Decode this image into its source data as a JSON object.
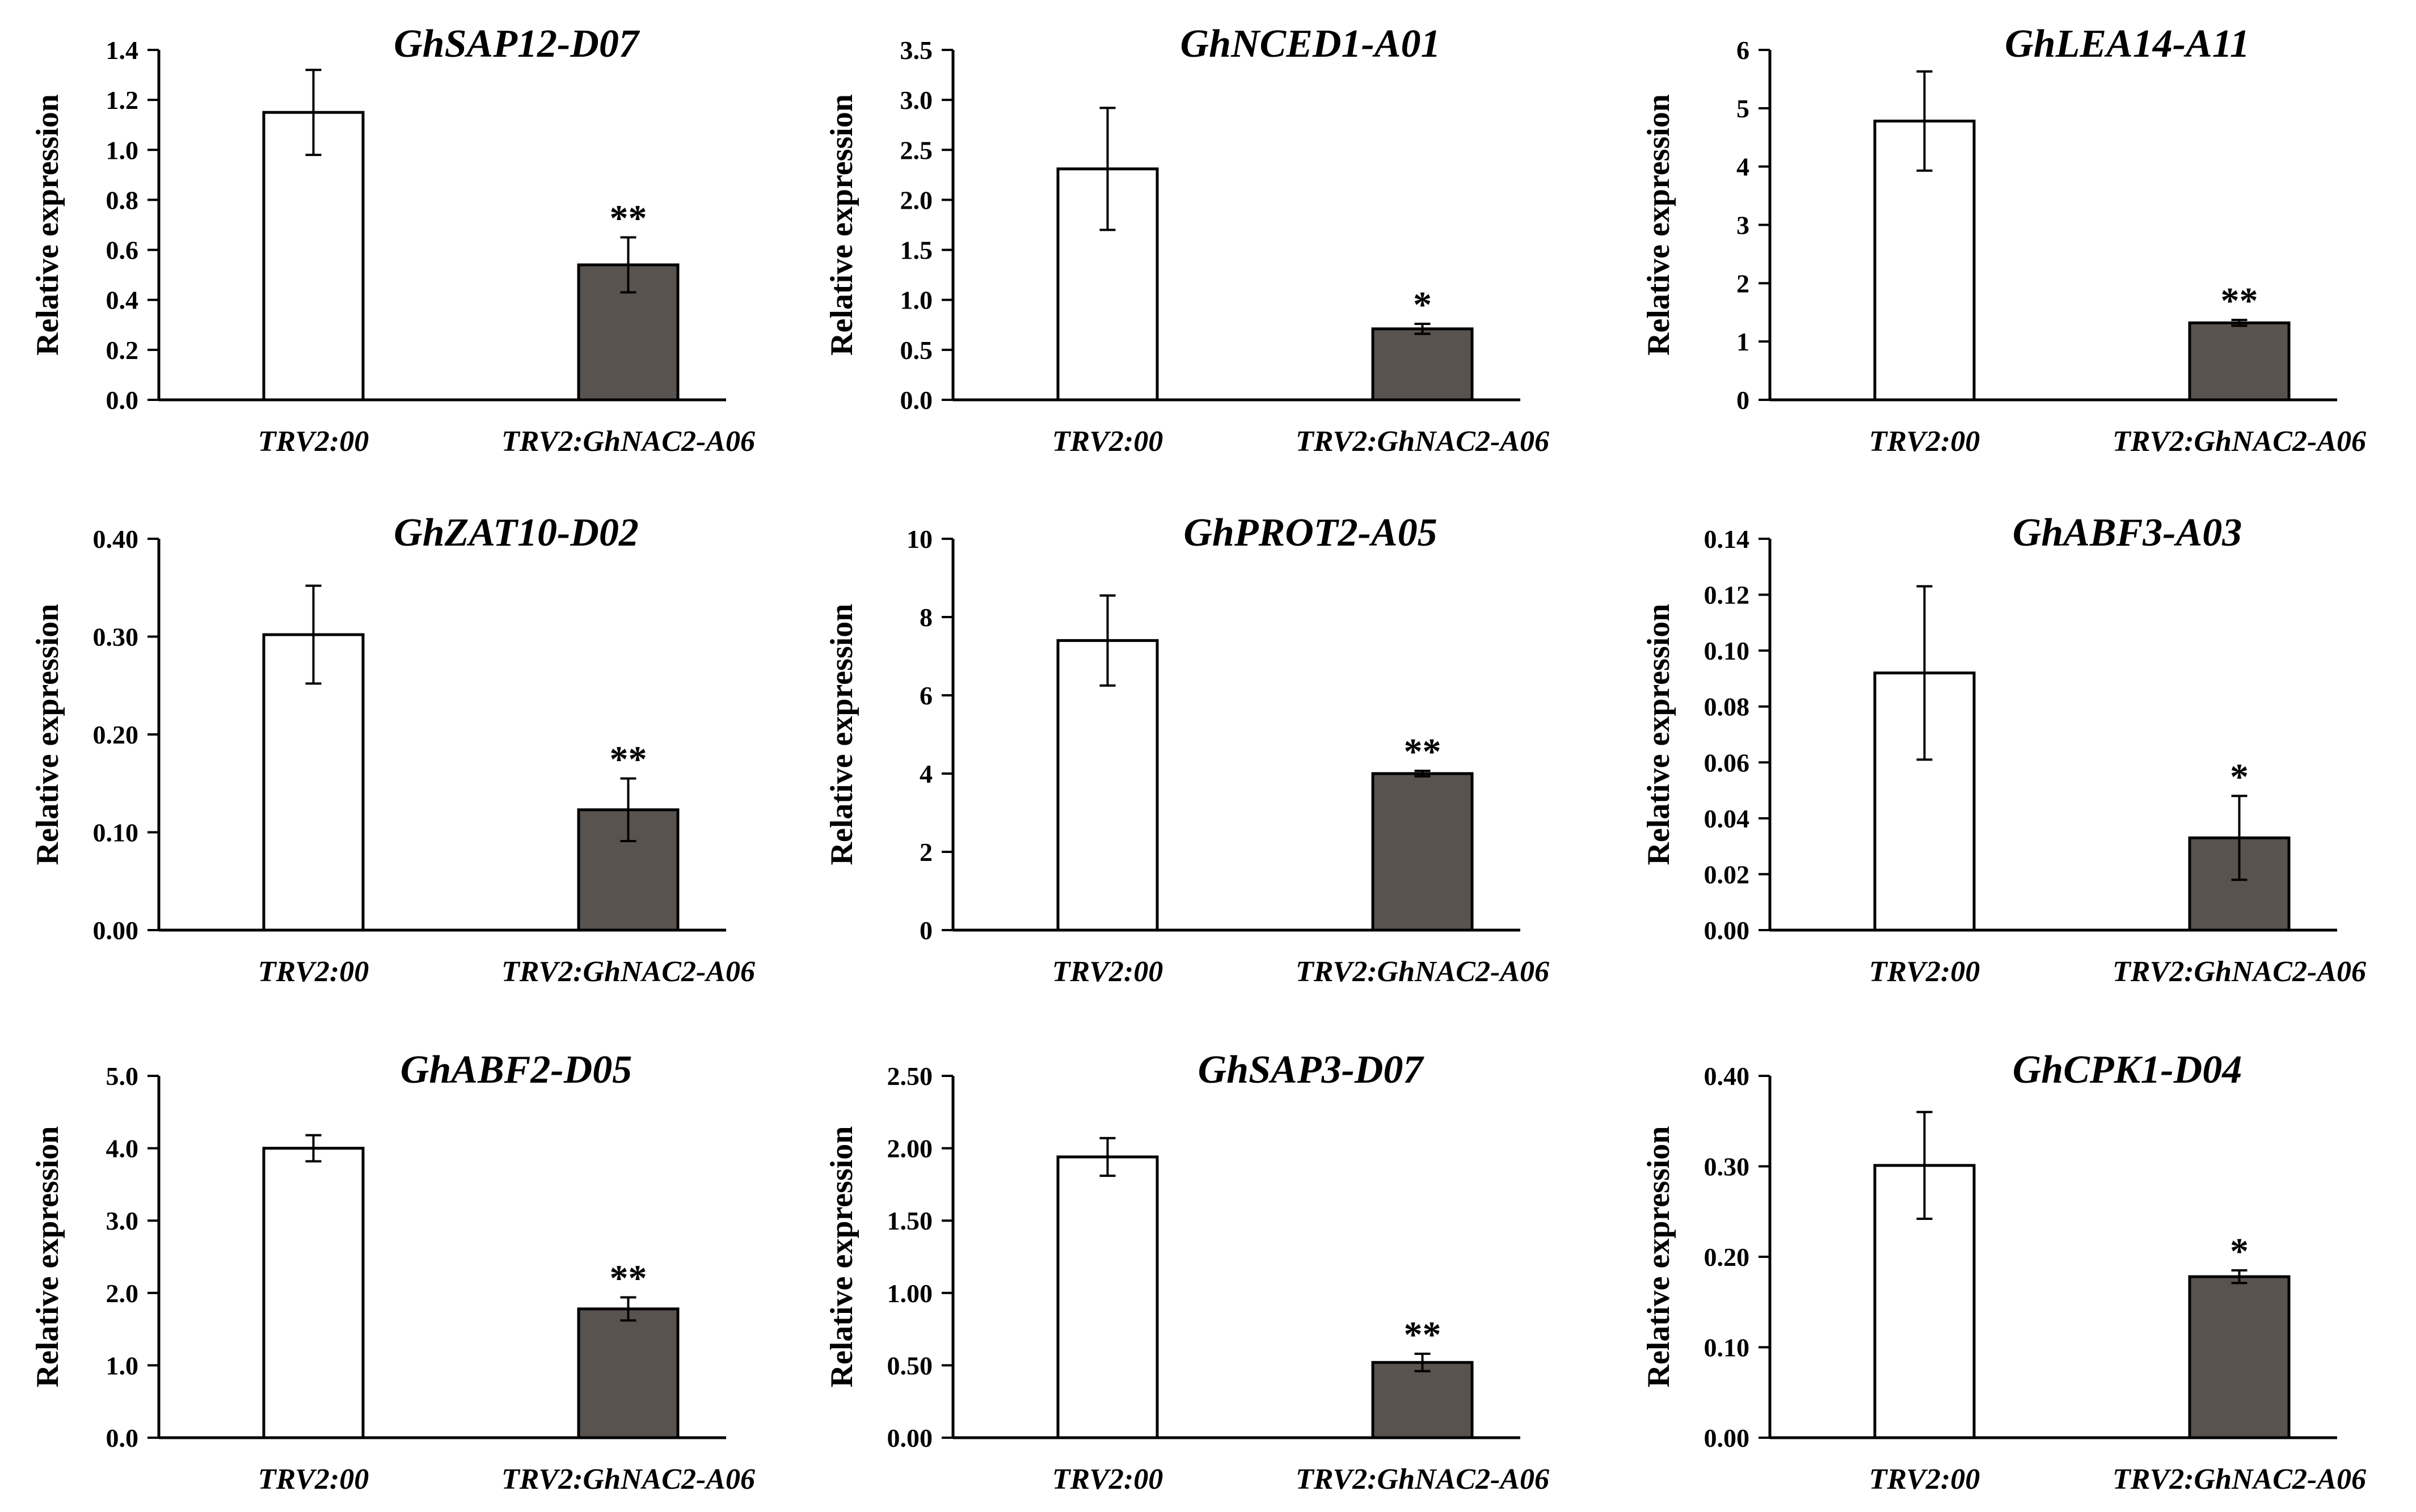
{
  "colors": {
    "control_bar": "#ffffff",
    "treatment_bar": "#595350",
    "axis": "#000000"
  },
  "chart_data": [
    {
      "type": "bar",
      "title": "GhSAP12-D07",
      "ylabel": "Relative expression",
      "categories": [
        "TRV2:00",
        "TRV2:GhNAC2-A06"
      ],
      "values": [
        1.15,
        0.54
      ],
      "errors": [
        0.17,
        0.11
      ],
      "significance": [
        "",
        "**"
      ],
      "ylim": [
        0,
        1.4
      ],
      "yticks": [
        "0.0",
        "0.2",
        "0.4",
        "0.6",
        "0.8",
        "1.0",
        "1.2",
        "1.4"
      ]
    },
    {
      "type": "bar",
      "title": "GhNCED1-A01",
      "ylabel": "Relative expression",
      "categories": [
        "TRV2:00",
        "TRV2:GhNAC2-A06"
      ],
      "values": [
        2.31,
        0.71
      ],
      "errors": [
        0.61,
        0.05
      ],
      "significance": [
        "",
        "*"
      ],
      "ylim": [
        0,
        3.5
      ],
      "yticks": [
        "0.0",
        "0.5",
        "1.0",
        "1.5",
        "2.0",
        "2.5",
        "3.0",
        "3.5"
      ]
    },
    {
      "type": "bar",
      "title": "GhLEA14-A11",
      "ylabel": "Relative expression",
      "categories": [
        "TRV2:00",
        "TRV2:GhNAC2-A06"
      ],
      "values": [
        4.78,
        1.32
      ],
      "errors": [
        0.85,
        0.05
      ],
      "significance": [
        "",
        "**"
      ],
      "ylim": [
        0,
        6
      ],
      "yticks": [
        "0",
        "1",
        "2",
        "3",
        "4",
        "5",
        "6"
      ]
    },
    {
      "type": "bar",
      "title": "GhZAT10-D02",
      "ylabel": "Relative expression",
      "categories": [
        "TRV2:00",
        "TRV2:GhNAC2-A06"
      ],
      "values": [
        0.302,
        0.123
      ],
      "errors": [
        0.05,
        0.032
      ],
      "significance": [
        "",
        "**"
      ],
      "ylim": [
        0,
        0.4
      ],
      "yticks": [
        "0.00",
        "0.10",
        "0.20",
        "0.30",
        "0.40"
      ]
    },
    {
      "type": "bar",
      "title": "GhPROT2-A05",
      "ylabel": "Relative expression",
      "categories": [
        "TRV2:00",
        "TRV2:GhNAC2-A06"
      ],
      "values": [
        7.4,
        4.0
      ],
      "errors": [
        1.15,
        0.07
      ],
      "significance": [
        "",
        "**"
      ],
      "ylim": [
        0,
        10
      ],
      "yticks": [
        "0",
        "2",
        "4",
        "6",
        "8",
        "10"
      ]
    },
    {
      "type": "bar",
      "title": "GhABF3-A03",
      "ylabel": "Relative expression",
      "categories": [
        "TRV2:00",
        "TRV2:GhNAC2-A06"
      ],
      "values": [
        0.092,
        0.033
      ],
      "errors": [
        0.031,
        0.015
      ],
      "significance": [
        "",
        "*"
      ],
      "ylim": [
        0,
        0.14
      ],
      "yticks": [
        "0.00",
        "0.02",
        "0.04",
        "0.06",
        "0.08",
        "0.10",
        "0.12",
        "0.14"
      ]
    },
    {
      "type": "bar",
      "title": "GhABF2-D05",
      "ylabel": "Relative expression",
      "categories": [
        "TRV2:00",
        "TRV2:GhNAC2-A06"
      ],
      "values": [
        4.0,
        1.78
      ],
      "errors": [
        0.18,
        0.16
      ],
      "significance": [
        "",
        "**"
      ],
      "ylim": [
        0,
        5
      ],
      "yticks": [
        "0.0",
        "1.0",
        "2.0",
        "3.0",
        "4.0",
        "5.0"
      ]
    },
    {
      "type": "bar",
      "title": "GhSAP3-D07",
      "ylabel": "Relative expression",
      "categories": [
        "TRV2:00",
        "TRV2:GhNAC2-A06"
      ],
      "values": [
        1.94,
        0.52
      ],
      "errors": [
        0.13,
        0.06
      ],
      "significance": [
        "",
        "**"
      ],
      "ylim": [
        0,
        2.5
      ],
      "yticks": [
        "0.00",
        "0.50",
        "1.00",
        "1.50",
        "2.00",
        "2.50"
      ]
    },
    {
      "type": "bar",
      "title": "GhCPK1-D04",
      "ylabel": "Relative expression",
      "categories": [
        "TRV2:00",
        "TRV2:GhNAC2-A06"
      ],
      "values": [
        0.301,
        0.178
      ],
      "errors": [
        0.059,
        0.007
      ],
      "significance": [
        "",
        "*"
      ],
      "ylim": [
        0,
        0.4
      ],
      "yticks": [
        "0.00",
        "0.10",
        "0.20",
        "0.30",
        "0.40"
      ]
    }
  ]
}
